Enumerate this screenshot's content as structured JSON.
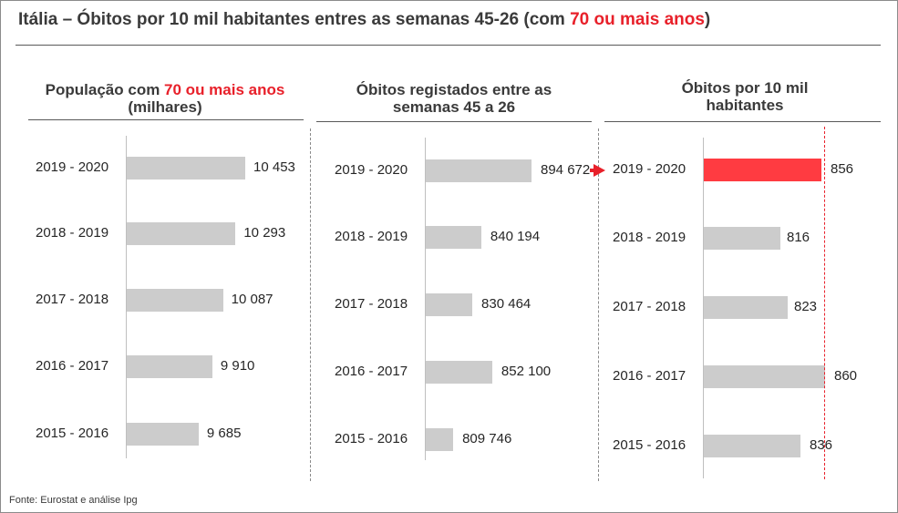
{
  "title": {
    "part1": "Itália – Óbitos por 10 mil habitantes entres as semanas 45-26 (com ",
    "highlight": "70 ou mais anos",
    "part2": ")"
  },
  "source": "Fonte: Eurostat e análise Ipg",
  "colors": {
    "bar": "#cccccc",
    "highlight_bar": "#ff3b41",
    "highlight_text": "#e8202a"
  },
  "chart_data": [
    {
      "type": "bar",
      "orientation": "horizontal",
      "title_parts": [
        "População com ",
        "70 ou mais anos",
        " (milhares)"
      ],
      "categories": [
        "2019 - 2020",
        "2018 - 2019",
        "2017 - 2018",
        "2016 - 2017",
        "2015 - 2016"
      ],
      "values": [
        10453,
        10293,
        10087,
        9910,
        9685
      ],
      "value_labels": [
        "10 453",
        "10 293",
        "10 087",
        "9 910",
        "9 685"
      ],
      "xlim": [
        8500,
        10453
      ]
    },
    {
      "type": "bar",
      "orientation": "horizontal",
      "title": "Óbitos registados entre as semanas 45 a 26",
      "categories": [
        "2019 - 2020",
        "2018 - 2019",
        "2017 - 2018",
        "2016 - 2017",
        "2015 - 2016"
      ],
      "values": [
        894672,
        840194,
        830464,
        852100,
        809746
      ],
      "value_labels": [
        "894 672",
        "840 194",
        "830 464",
        "852 100",
        "809 746"
      ],
      "xlim": [
        780000,
        894672
      ]
    },
    {
      "type": "bar",
      "orientation": "horizontal",
      "title": "Óbitos por 10 mil habitantes",
      "categories": [
        "2019 - 2020",
        "2018 - 2019",
        "2017 - 2018",
        "2016 - 2017",
        "2015 - 2016"
      ],
      "values": [
        856,
        816,
        823,
        860,
        836
      ],
      "value_labels": [
        "856",
        "816",
        "823",
        "860",
        "836"
      ],
      "highlight_index": 0,
      "reference_value": 856,
      "xlim": [
        740,
        860
      ]
    }
  ]
}
